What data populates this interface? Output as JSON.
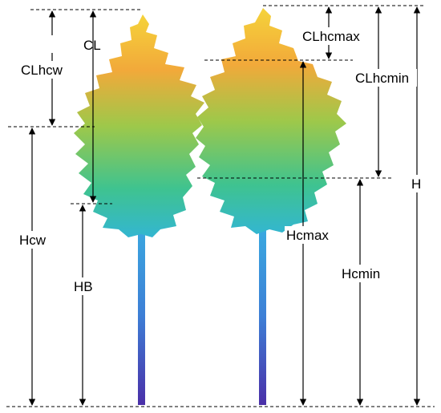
{
  "labels": {
    "cl": "CL",
    "clhcw": "CLhcw",
    "hcw": "Hcw",
    "hb": "HB",
    "clhcmax": "CLhcmax",
    "clhcmin": "CLhcmin",
    "hcmax": "Hcmax",
    "hcmin": "Hcmin",
    "h": "H"
  },
  "colors": {
    "crown_top": "#f5d33a",
    "crown_upper": "#f2a93a",
    "crown_mid": "#9ec84a",
    "crown_lower": "#3fc38f",
    "crown_base": "#33b6d1",
    "trunk_top": "#3aa9e0",
    "trunk_bottom": "#4a2fa8"
  }
}
